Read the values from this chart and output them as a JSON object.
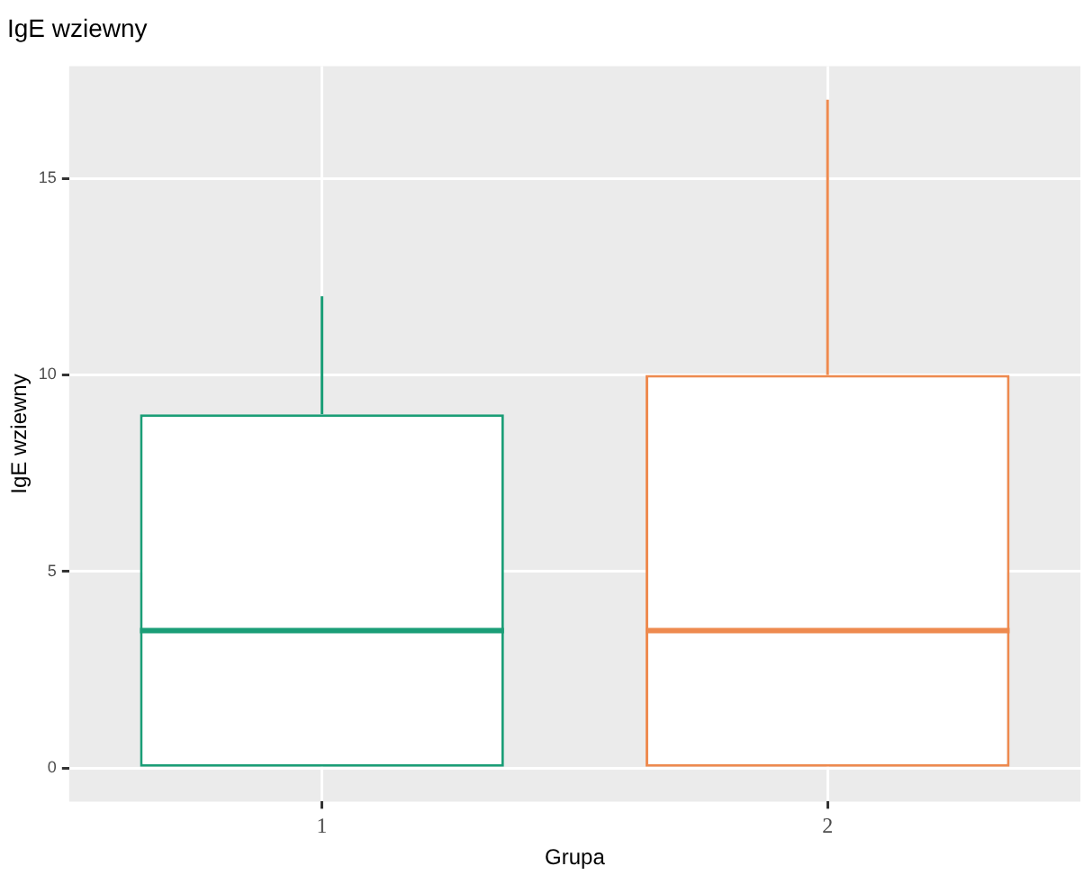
{
  "chart_data": {
    "type": "box",
    "title": "IgE wziewny",
    "xlabel": "Grupa",
    "ylabel": "IgE wziewny",
    "categories": [
      "1",
      "2"
    ],
    "boxes": [
      {
        "low": 0,
        "q1": 0,
        "median": 3.5,
        "q3": 9,
        "high": 12
      },
      {
        "low": 0,
        "q1": 0,
        "median": 3.5,
        "q3": 10,
        "high": 17
      }
    ],
    "colors": [
      "#1b9e77",
      "#ee8a4f"
    ],
    "ylim": [
      -0.85,
      17.85
    ],
    "yticks": [
      0,
      5,
      10,
      15
    ],
    "grid": true,
    "legend": false
  }
}
